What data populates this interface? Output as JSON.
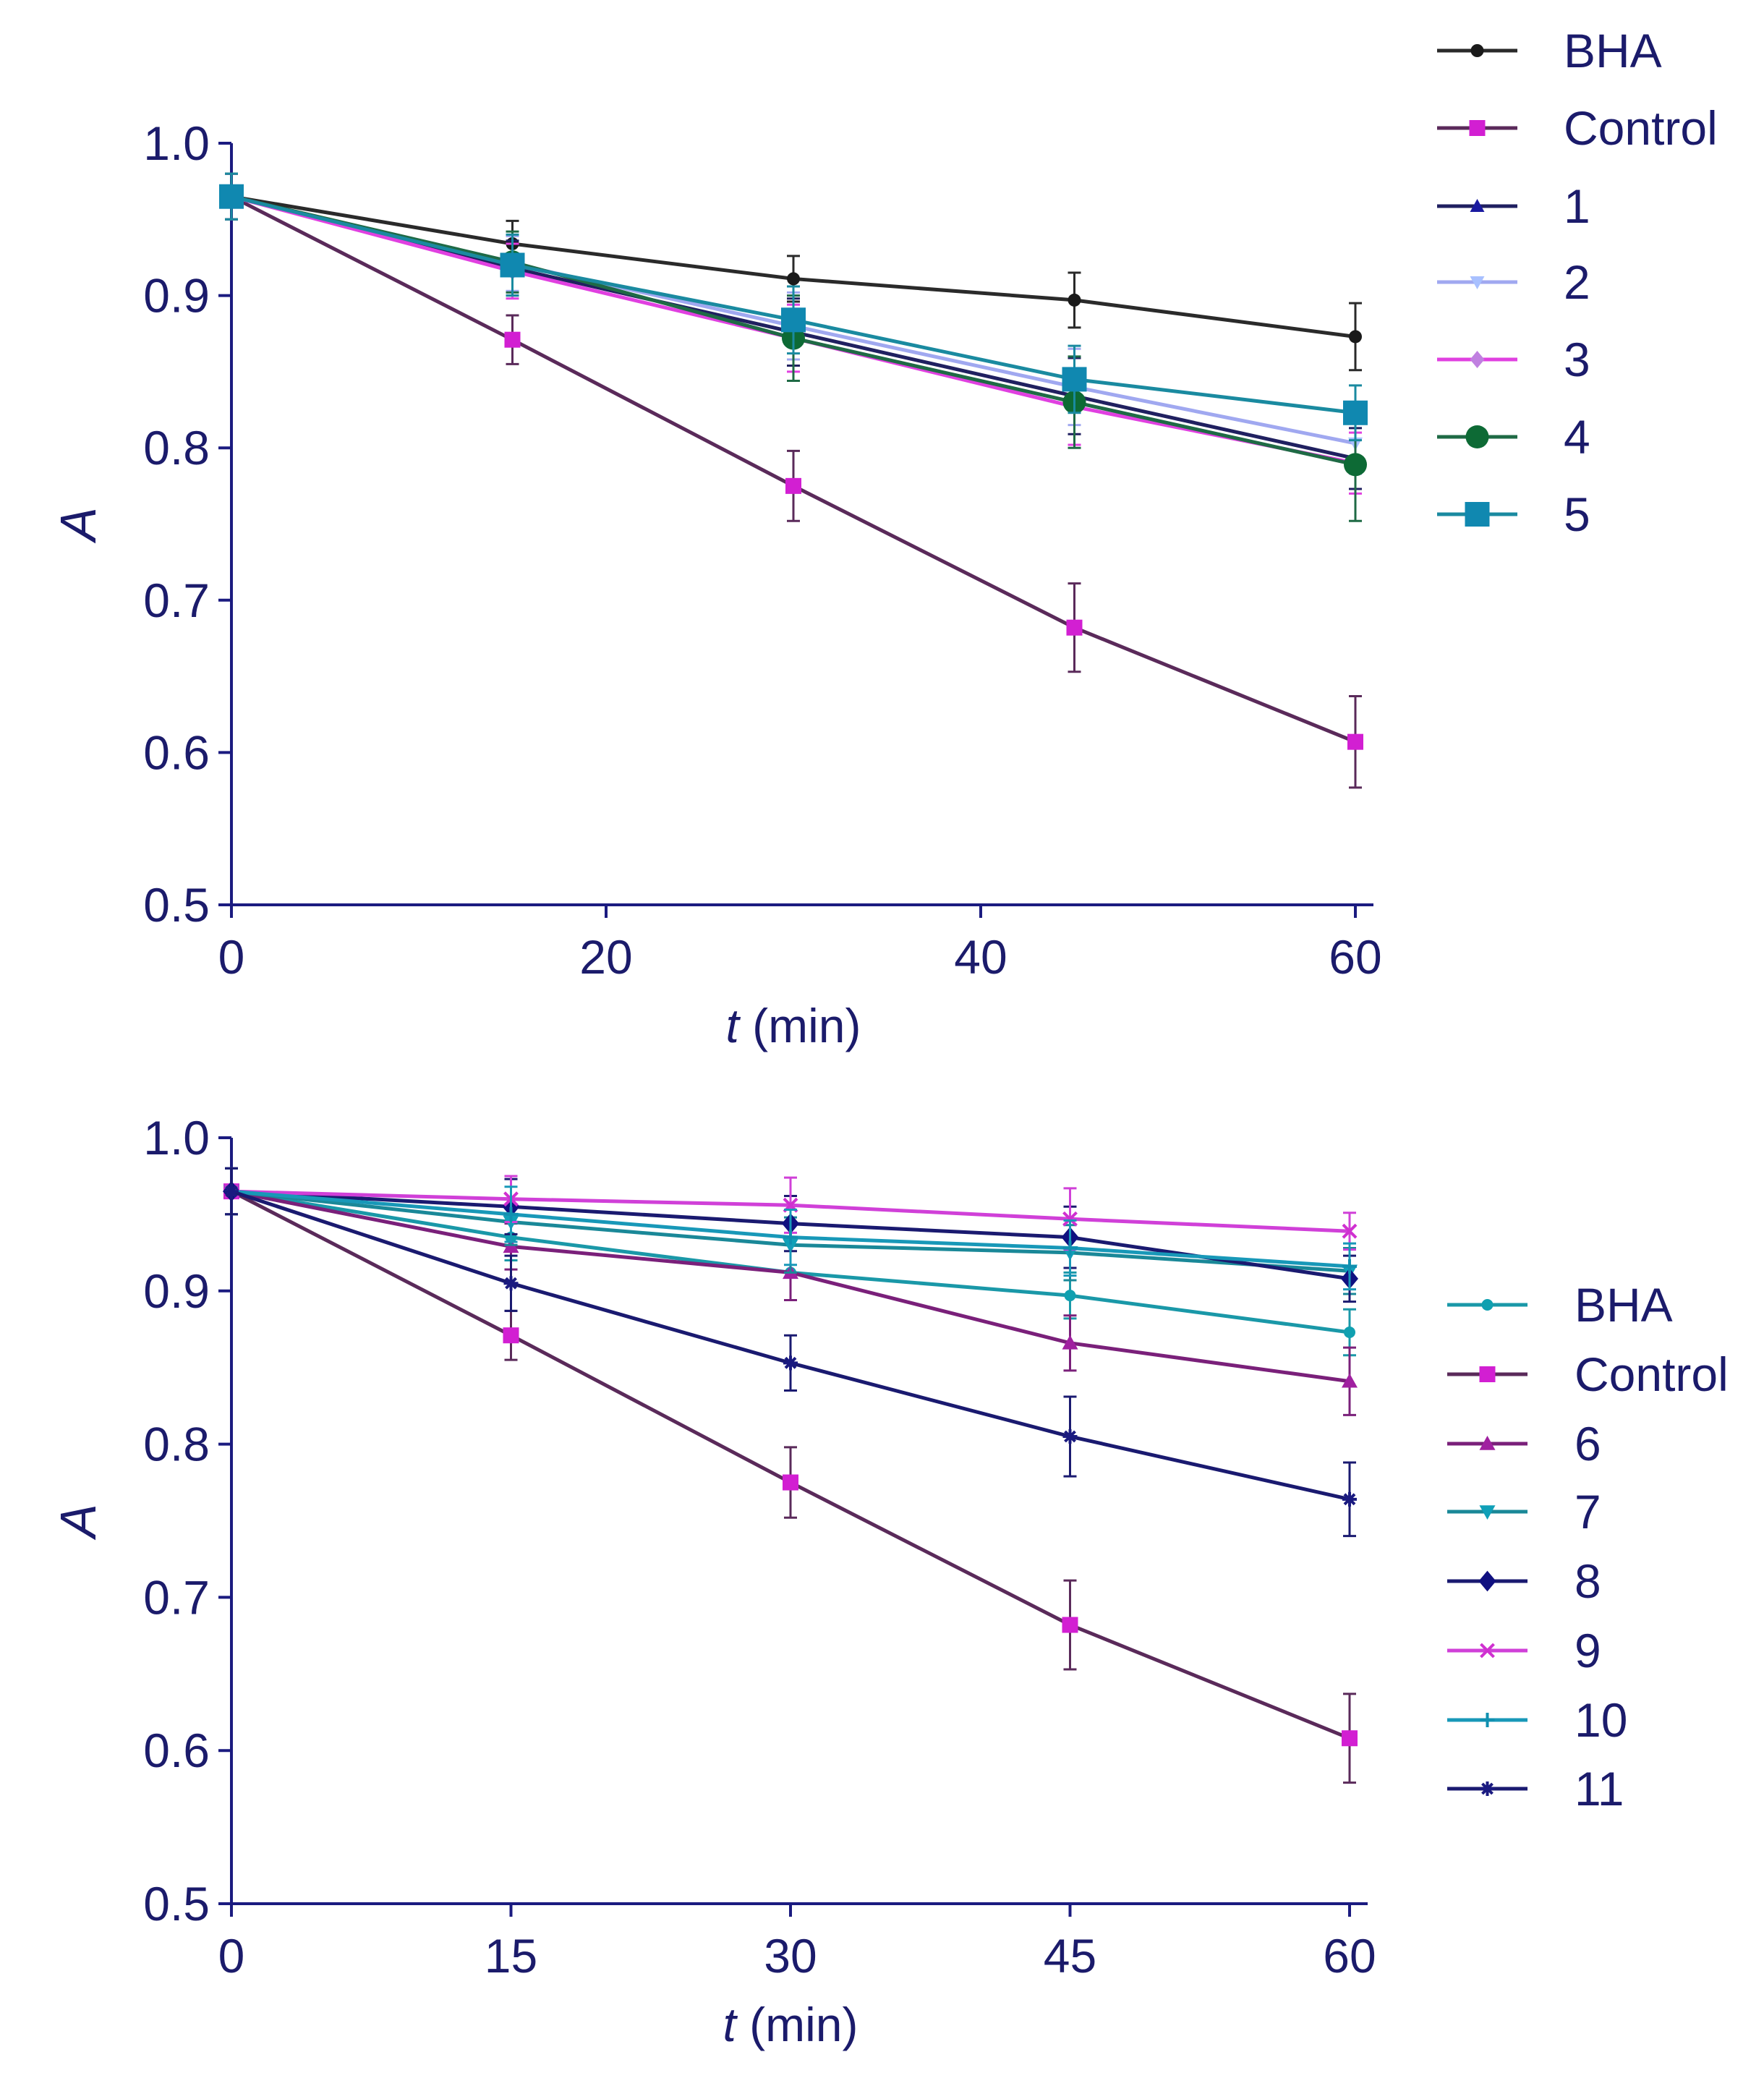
{
  "chart_data": [
    {
      "type": "line",
      "title": "",
      "xlabel_italic": "t",
      "xlabel_rest": " (min)",
      "ylabel": "A",
      "xlim": [
        0,
        60
      ],
      "ylim": [
        0.5,
        1.0
      ],
      "xticks": [
        0,
        20,
        40,
        60
      ],
      "xtick_labels": [
        "0",
        "20",
        "40",
        "60"
      ],
      "yticks": [
        0.5,
        0.6,
        0.7,
        0.8,
        0.9,
        1.0
      ],
      "ytick_labels": [
        "0.5",
        "0.6",
        "0.7",
        "0.8",
        "0.9",
        "1.0"
      ],
      "grid": false,
      "legend_placement": "top-right outside",
      "x": [
        0,
        15,
        30,
        45,
        60
      ],
      "series": [
        {
          "name": "BHA",
          "color": "#1a1a1a",
          "line": "#2a2a2a",
          "marker": "circle",
          "size": 9,
          "values": [
            0.965,
            0.934,
            0.911,
            0.897,
            0.873
          ],
          "err": [
            0.015,
            0.015,
            0.015,
            0.018,
            0.022
          ]
        },
        {
          "name": "Control",
          "color": "#d21fd2",
          "line": "#5a2a5a",
          "marker": "square",
          "size": 11,
          "values": [
            0.965,
            0.871,
            0.775,
            0.682,
            0.607
          ],
          "err": [
            0.015,
            0.016,
            0.023,
            0.029,
            0.03
          ]
        },
        {
          "name": "1",
          "color": "#1a1aa0",
          "line": "#202060",
          "marker": "triangle-up",
          "size": 10,
          "values": [
            0.965,
            0.918,
            0.876,
            0.834,
            0.793
          ],
          "err": [
            0.015,
            0.018,
            0.022,
            0.025,
            0.02
          ]
        },
        {
          "name": "2",
          "color": "#a8c0ff",
          "line": "#a0a8f0",
          "marker": "triangle-down",
          "size": 10,
          "values": [
            0.965,
            0.921,
            0.88,
            0.84,
            0.803
          ],
          "err": [
            0.015,
            0.018,
            0.022,
            0.025,
            0.02
          ]
        },
        {
          "name": "3",
          "color": "#c080e0",
          "line": "#e040e0",
          "marker": "diamond",
          "size": 10,
          "values": [
            0.965,
            0.916,
            0.872,
            0.827,
            0.79
          ],
          "err": [
            0.015,
            0.018,
            0.022,
            0.025,
            0.02
          ]
        },
        {
          "name": "4",
          "color": "#0d6a35",
          "line": "#1f6a45",
          "marker": "circle",
          "size": 16,
          "values": [
            0.965,
            0.922,
            0.872,
            0.83,
            0.789
          ],
          "err": [
            0.015,
            0.02,
            0.028,
            0.03,
            0.037
          ]
        },
        {
          "name": "5",
          "color": "#1088b0",
          "line": "#1a8aa0",
          "marker": "square",
          "size": 17,
          "values": [
            0.965,
            0.92,
            0.884,
            0.845,
            0.823
          ],
          "err": [
            0.015,
            0.02,
            0.022,
            0.022,
            0.018
          ]
        }
      ]
    },
    {
      "type": "line",
      "title": "",
      "xlabel_italic": "t",
      "xlabel_rest": " (min)",
      "ylabel": "A",
      "xlim": [
        0,
        60
      ],
      "ylim": [
        0.5,
        1.0
      ],
      "xticks": [
        0,
        15,
        30,
        45,
        60
      ],
      "xtick_labels": [
        "0",
        "15",
        "30",
        "45",
        "60"
      ],
      "yticks": [
        0.5,
        0.6,
        0.7,
        0.8,
        0.9,
        1.0
      ],
      "ytick_labels": [
        "0.5",
        "0.6",
        "0.7",
        "0.8",
        "0.9",
        "1.0"
      ],
      "grid": false,
      "legend_placement": "right outside",
      "x": [
        0,
        15,
        30,
        45,
        60
      ],
      "series": [
        {
          "name": "BHA",
          "color": "#10a0b0",
          "line": "#1a98a8",
          "marker": "circle",
          "size": 8,
          "values": [
            0.965,
            0.935,
            0.912,
            0.897,
            0.873
          ],
          "err": [
            0.015,
            0.015,
            0.018,
            0.015,
            0.015
          ]
        },
        {
          "name": "Control",
          "color": "#d21fd2",
          "line": "#5a2a5a",
          "marker": "square",
          "size": 11,
          "values": [
            0.965,
            0.871,
            0.775,
            0.682,
            0.608
          ],
          "err": [
            0.015,
            0.016,
            0.023,
            0.029,
            0.029
          ]
        },
        {
          "name": "6",
          "color": "#a020a0",
          "line": "#7a207a",
          "marker": "triangle-up",
          "size": 11,
          "values": [
            0.965,
            0.929,
            0.912,
            0.866,
            0.841
          ],
          "err": [
            0.015,
            0.015,
            0.018,
            0.018,
            0.022
          ]
        },
        {
          "name": "7",
          "color": "#10a0b8",
          "line": "#1a8898",
          "marker": "triangle-down",
          "size": 11,
          "values": [
            0.965,
            0.945,
            0.93,
            0.925,
            0.913
          ],
          "err": [
            0.015,
            0.015,
            0.018,
            0.018,
            0.015
          ]
        },
        {
          "name": "8",
          "color": "#101080",
          "line": "#1a1a70",
          "marker": "diamond",
          "size": 12,
          "values": [
            0.965,
            0.955,
            0.944,
            0.935,
            0.908
          ],
          "err": [
            0.015,
            0.018,
            0.018,
            0.02,
            0.015
          ]
        },
        {
          "name": "9",
          "color": "#d030d0",
          "line": "#d040d8",
          "marker": "x",
          "size": 9,
          "values": [
            0.965,
            0.96,
            0.956,
            0.947,
            0.939
          ],
          "err": [
            0.015,
            0.015,
            0.018,
            0.02,
            0.012
          ]
        },
        {
          "name": "10",
          "color": "#1090b0",
          "line": "#1898b8",
          "marker": "plus",
          "size": 10,
          "values": [
            0.965,
            0.95,
            0.935,
            0.928,
            0.916
          ],
          "err": [
            0.015,
            0.018,
            0.018,
            0.018,
            0.015
          ]
        },
        {
          "name": "11",
          "color": "#1a1a80",
          "line": "#1a1a70",
          "marker": "star",
          "size": 10,
          "values": [
            0.965,
            0.905,
            0.853,
            0.805,
            0.764
          ],
          "err": [
            0.015,
            0.018,
            0.018,
            0.026,
            0.024
          ]
        }
      ]
    }
  ]
}
